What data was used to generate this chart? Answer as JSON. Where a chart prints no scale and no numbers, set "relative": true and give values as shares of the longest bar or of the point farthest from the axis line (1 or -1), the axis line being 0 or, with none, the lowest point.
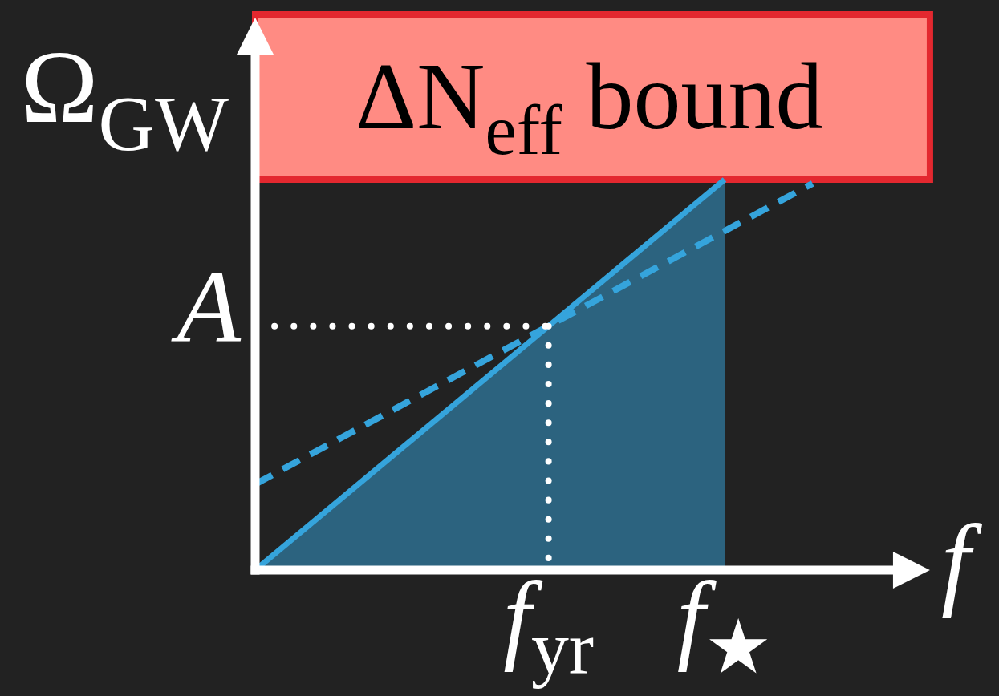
{
  "chart_data": {
    "type": "line",
    "xlabel": "f",
    "ylabel": "Ω$_{GW}$",
    "relative": true,
    "categories": [
      null,
      null,
      null,
      null,
      null,
      null,
      null,
      null,
      null,
      null,
      "f$_{yr}$",
      null,
      null,
      null,
      null,
      null,
      "f$_{★}$",
      null,
      null,
      null,
      null,
      null,
      null,
      null
    ],
    "series": [
      {
        "type": "area",
        "color": "#35a4dc",
        "values": [
          0,
          null,
          null,
          null,
          null,
          null,
          null,
          null,
          null,
          null,
          null,
          null,
          null,
          null,
          null,
          null,
          1,
          null,
          null,
          null,
          null,
          null,
          null,
          null
        ]
      },
      {
        "line_style": "dashed",
        "color": "#35a4dc",
        "values": [
          0.22,
          null,
          null,
          null,
          null,
          null,
          null,
          null,
          null,
          null,
          null,
          null,
          null,
          null,
          null,
          null,
          null,
          null,
          null,
          0.99,
          null,
          null,
          null,
          null
        ]
      }
    ],
    "ref_lines": [
      {
        "axis": "y",
        "value": 0.625,
        "label": "A",
        "line_style": "dotted",
        "color": "#ffffff"
      },
      {
        "axis": "x",
        "value": "f$_{yr}$",
        "line_style": "dotted",
        "color": "#ffffff"
      }
    ],
    "bands": [
      {
        "axis": "y",
        "from": 1,
        "to": 1.423,
        "label": "ΔN$_{eff}$ bound",
        "color": "#ff8b83"
      }
    ]
  }
}
